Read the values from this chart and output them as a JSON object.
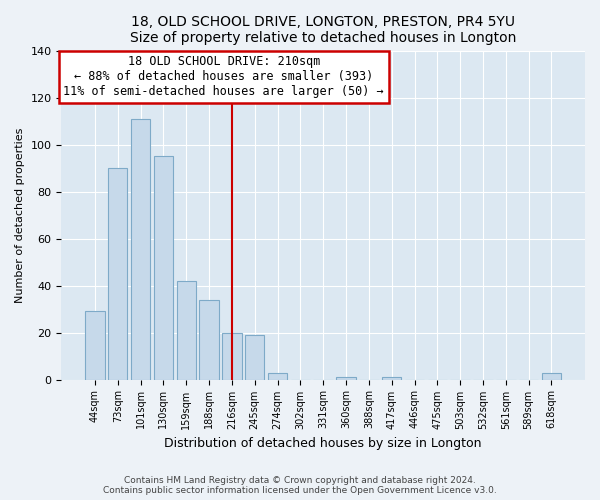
{
  "title": "18, OLD SCHOOL DRIVE, LONGTON, PRESTON, PR4 5YU",
  "subtitle": "Size of property relative to detached houses in Longton",
  "xlabel": "Distribution of detached houses by size in Longton",
  "ylabel": "Number of detached properties",
  "bar_labels": [
    "44sqm",
    "73sqm",
    "101sqm",
    "130sqm",
    "159sqm",
    "188sqm",
    "216sqm",
    "245sqm",
    "274sqm",
    "302sqm",
    "331sqm",
    "360sqm",
    "388sqm",
    "417sqm",
    "446sqm",
    "475sqm",
    "503sqm",
    "532sqm",
    "561sqm",
    "589sqm",
    "618sqm"
  ],
  "bar_values": [
    29,
    90,
    111,
    95,
    42,
    34,
    20,
    19,
    3,
    0,
    0,
    1,
    0,
    1,
    0,
    0,
    0,
    0,
    0,
    0,
    3
  ],
  "bar_color": "#c6d9ea",
  "bar_edge_color": "#7eaac8",
  "highlight_x_label": "216sqm",
  "highlight_line_color": "#cc0000",
  "annotation_title": "18 OLD SCHOOL DRIVE: 210sqm",
  "annotation_line1": "← 88% of detached houses are smaller (393)",
  "annotation_line2": "11% of semi-detached houses are larger (50) →",
  "annotation_box_color": "#ffffff",
  "annotation_box_edge": "#cc0000",
  "ylim": [
    0,
    140
  ],
  "yticks": [
    0,
    20,
    40,
    60,
    80,
    100,
    120,
    140
  ],
  "footer1": "Contains HM Land Registry data © Crown copyright and database right 2024.",
  "footer2": "Contains public sector information licensed under the Open Government Licence v3.0.",
  "bg_color": "#edf2f7",
  "plot_bg_color": "#dce8f2",
  "grid_color": "#ffffff"
}
